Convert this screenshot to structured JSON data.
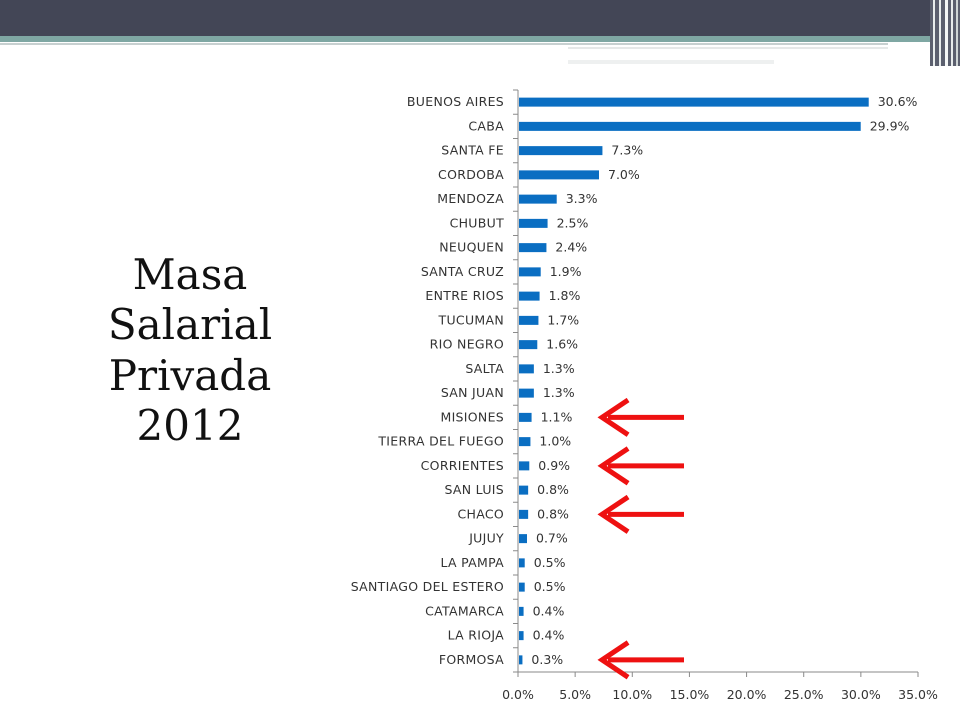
{
  "slide": {
    "title_lines": [
      "Masa",
      "Salarial",
      "Privada",
      "2012"
    ]
  },
  "colors": {
    "bar": "#0a6ec2",
    "arrow": "#ee1111",
    "header": "#434656",
    "header_accent": "#7fa7a3"
  },
  "chart_data": {
    "type": "bar",
    "orientation": "horizontal",
    "categories": [
      "BUENOS AIRES",
      "CABA",
      "SANTA  FE",
      "CORDOBA",
      "MENDOZA",
      "CHUBUT",
      "NEUQUEN",
      "SANTA  CRUZ",
      "ENTRE RIOS",
      "TUCUMAN",
      "RIO NEGRO",
      "SALTA",
      "SAN  JUAN",
      "MISIONES",
      "TIERRA  DEL  FUEGO",
      "CORRIENTES",
      "SAN  LUIS",
      "CHACO",
      "JUJUY",
      "LA  PAMPA",
      "SANTIAGO  DEL  ESTERO",
      "CATAMARCA",
      "LA  RIOJA",
      "FORMOSA"
    ],
    "values": [
      30.6,
      29.9,
      7.3,
      7.0,
      3.3,
      2.5,
      2.4,
      1.9,
      1.8,
      1.7,
      1.6,
      1.3,
      1.3,
      1.1,
      1.0,
      0.9,
      0.8,
      0.8,
      0.7,
      0.5,
      0.5,
      0.4,
      0.4,
      0.3
    ],
    "value_labels": [
      "30.6%",
      "29.9%",
      "7.3%",
      "7.0%",
      "3.3%",
      "2.5%",
      "2.4%",
      "1.9%",
      "1.8%",
      "1.7%",
      "1.6%",
      "1.3%",
      "1.3%",
      "1.1%",
      "1.0%",
      "0.9%",
      "0.8%",
      "0.8%",
      "0.7%",
      "0.5%",
      "0.5%",
      "0.4%",
      "0.4%",
      "0.3%"
    ],
    "x_ticks": [
      "0.0%",
      "5.0%",
      "10.0%",
      "15.0%",
      "20.0%",
      "25.0%",
      "30.0%",
      "35.0%"
    ],
    "xlim": [
      0,
      35
    ],
    "grid": false,
    "annotations": {
      "arrows_pointing_to": [
        "MISIONES",
        "CORRIENTES",
        "CHACO",
        "FORMOSA"
      ]
    }
  }
}
